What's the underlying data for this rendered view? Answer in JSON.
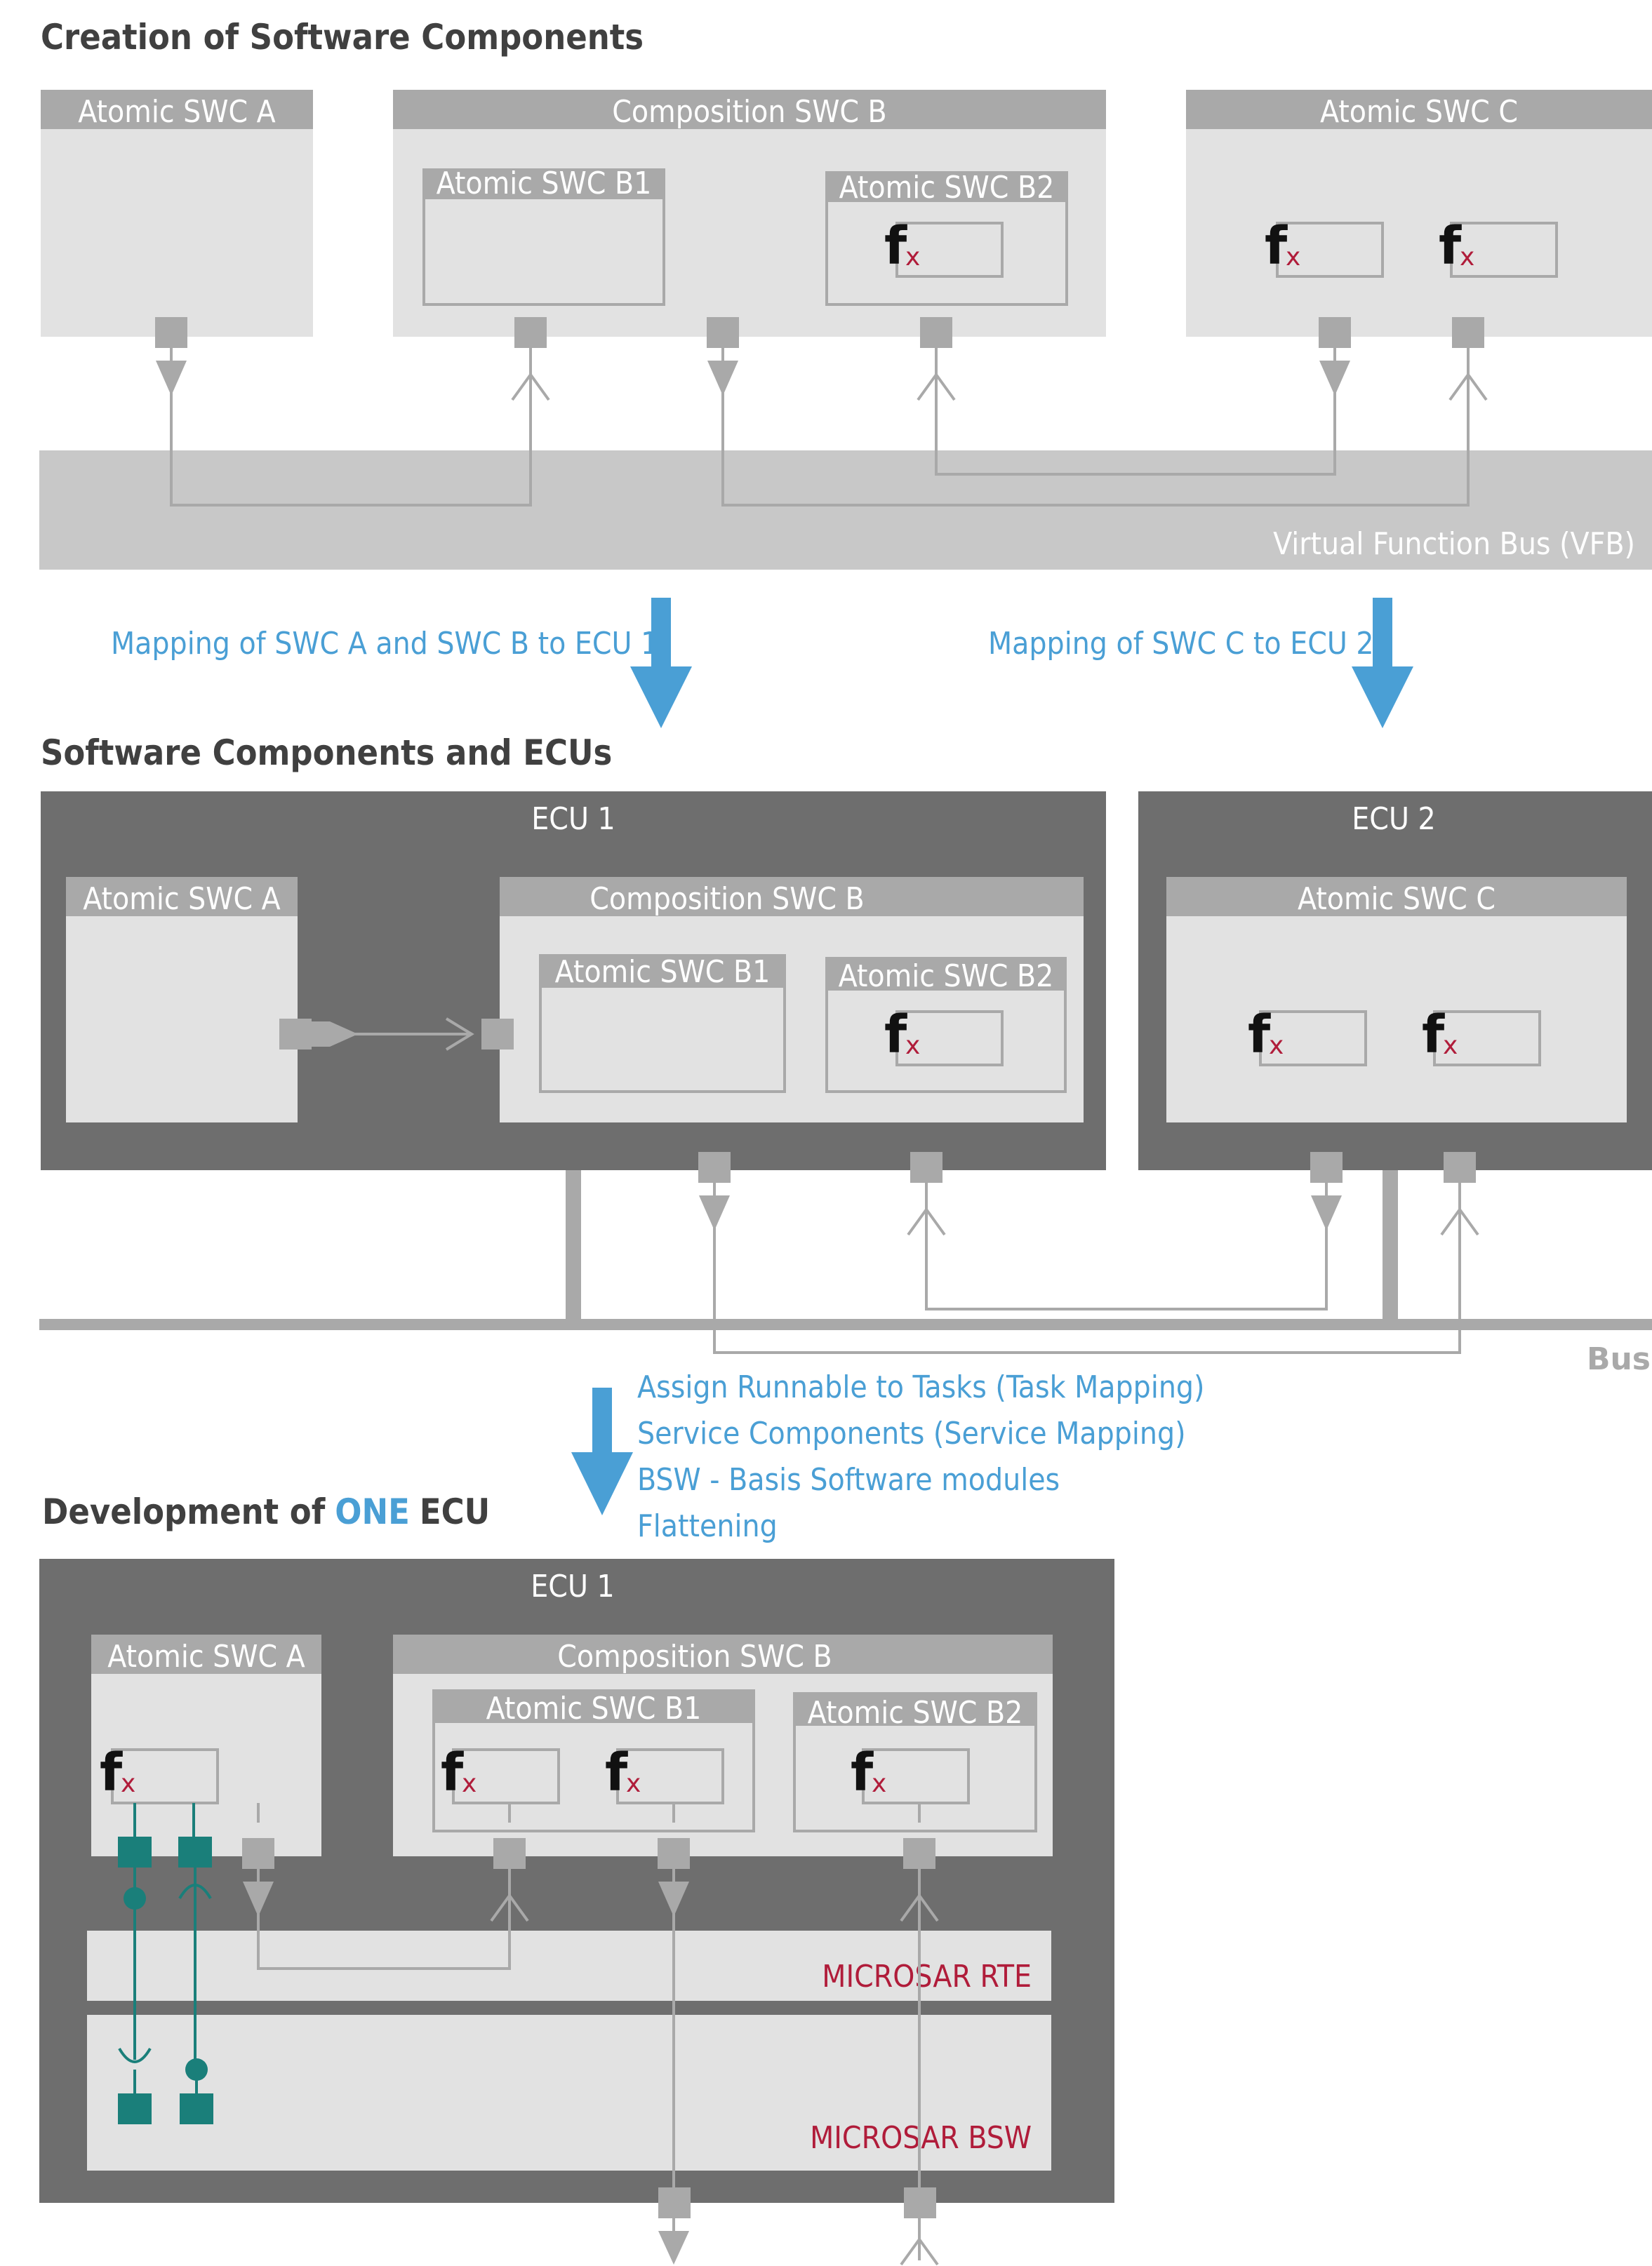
{
  "section1": {
    "title": "Creation of Software Components",
    "swc_a": "Atomic SWC A",
    "swc_b": "Composition SWC B",
    "swc_b1": "Atomic SWC B1",
    "swc_b2": "Atomic SWC B2",
    "swc_c": "Atomic SWC C",
    "vfb": "Virtual Function Bus (VFB)"
  },
  "mapping": {
    "left": "Mapping of SWC A and SWC B to ECU 1",
    "right": "Mapping of SWC C to ECU 2"
  },
  "section2": {
    "title": "Software Components and ECUs",
    "ecu1": "ECU 1",
    "ecu2": "ECU 2",
    "swc_a": "Atomic SWC A",
    "swc_b": "Composition SWC B",
    "swc_b1": "Atomic SWC B1",
    "swc_b2": "Atomic SWC B2",
    "swc_c": "Atomic SWC C",
    "bus": "Bus"
  },
  "steps": [
    "Assign Runnable to Tasks (Task Mapping)",
    "Service Components (Service Mapping)",
    "BSW - Basis Software modules",
    "Flattening"
  ],
  "section3": {
    "title_prefix": "Development of",
    "title_highlight": "ONE",
    "title_suffix": "ECU",
    "ecu1": "ECU 1",
    "swc_a": "Atomic SWC A",
    "swc_b": "Composition SWC B",
    "swc_b1": "Atomic SWC B1",
    "swc_b2": "Atomic SWC B2",
    "rte": "MICROSAR RTE",
    "bsw": "MICROSAR BSW"
  },
  "function_symbol": {
    "f": "f",
    "x": "x"
  },
  "colors": {
    "light_box": "#e2e2e2",
    "header_grey": "#a9a9a9",
    "ecu_dark": "#6e6e6e",
    "vfb_grey": "#c8c8c8",
    "accent_blue": "#4a9fd5",
    "microsar_red": "#b01c3a",
    "teal_port": "#1a7f7a"
  }
}
